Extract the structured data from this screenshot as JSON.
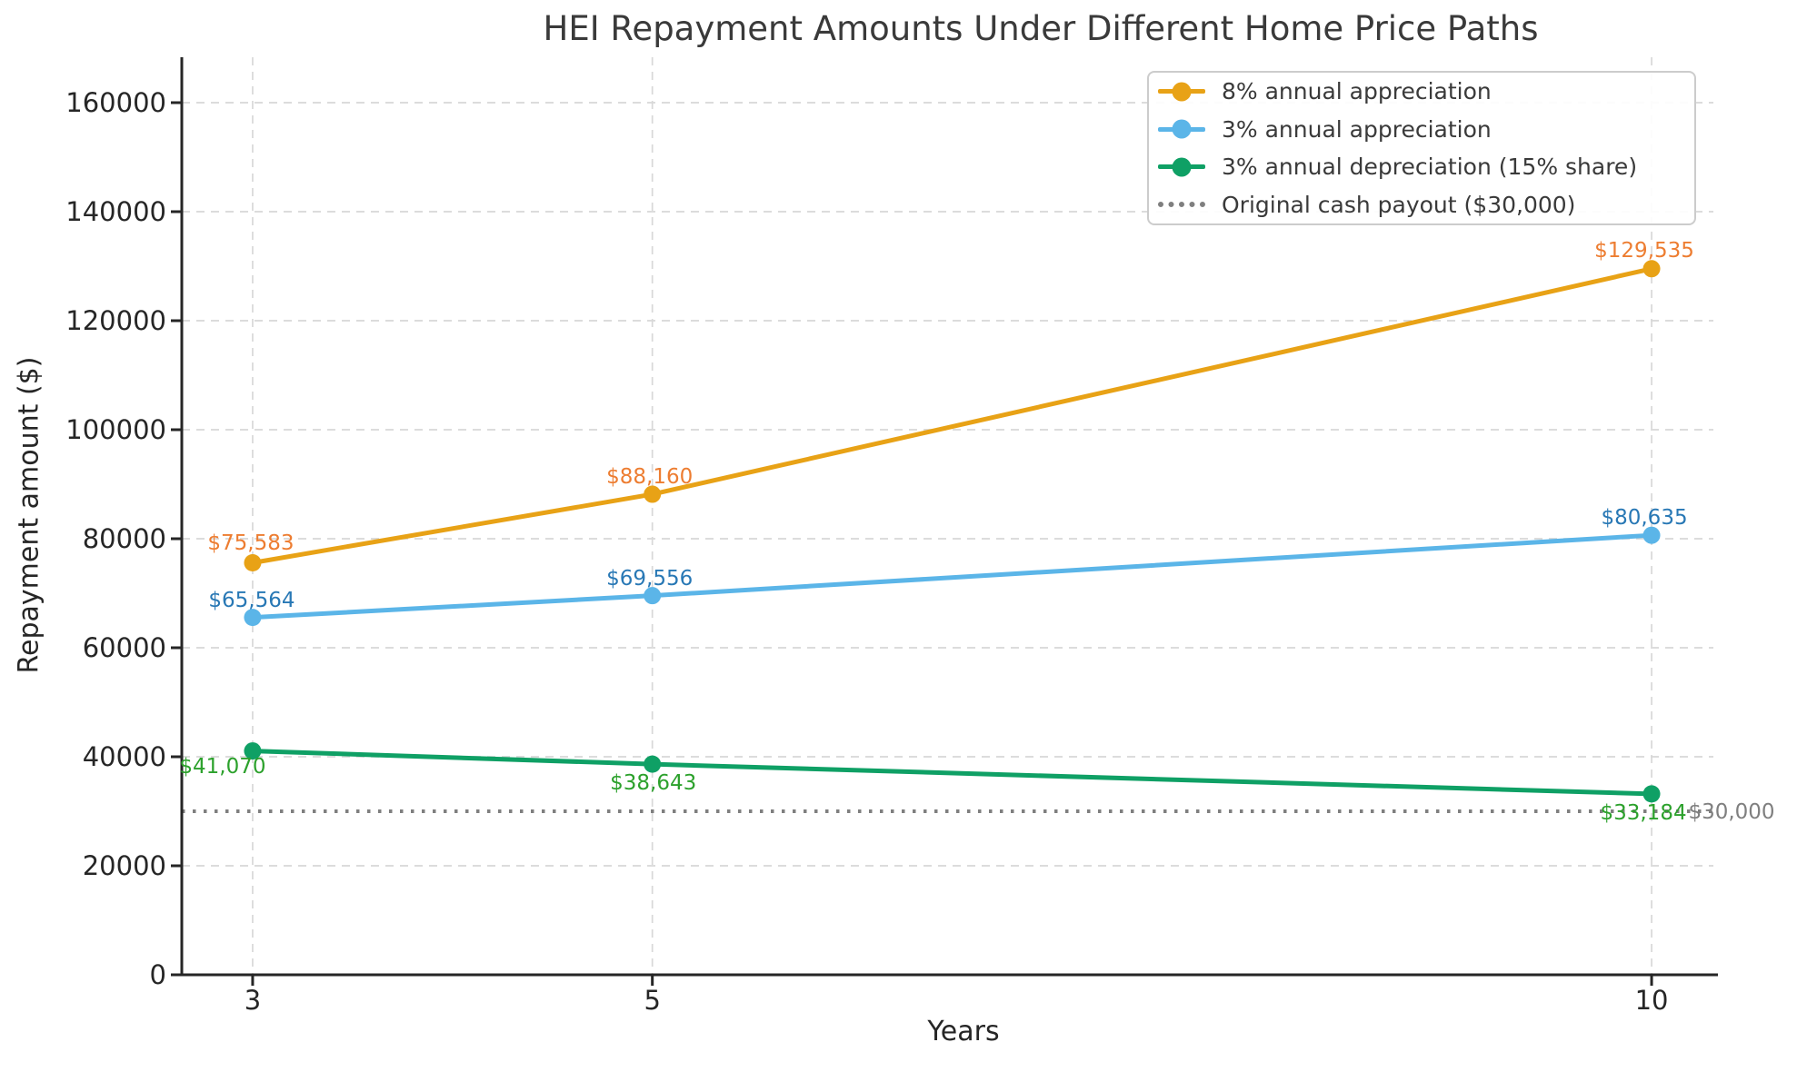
{
  "title": "HEI Repayment Amounts Under Different Home Price Paths",
  "axes": {
    "xlabel": "Years",
    "ylabel": "Repayment amount ($)",
    "x_ticks": [
      {
        "value": 3,
        "label": "3"
      },
      {
        "value": 5,
        "label": "5"
      },
      {
        "value": 10,
        "label": "10"
      }
    ],
    "y_ticks": [
      {
        "value": 0,
        "label": "0"
      },
      {
        "value": 20000,
        "label": "20000"
      },
      {
        "value": 40000,
        "label": "40000"
      },
      {
        "value": 60000,
        "label": "60000"
      },
      {
        "value": 80000,
        "label": "80000"
      },
      {
        "value": 100000,
        "label": "100000"
      },
      {
        "value": 120000,
        "label": "120000"
      },
      {
        "value": 140000,
        "label": "140000"
      },
      {
        "value": 160000,
        "label": "160000"
      }
    ]
  },
  "legend": {
    "position": "upper right",
    "items": [
      {
        "label": "8% annual appreciation",
        "color": "#E8A216",
        "style": "solid"
      },
      {
        "label": "3% annual appreciation",
        "color": "#5BB5E8",
        "style": "solid"
      },
      {
        "label": "3% annual depreciation (15% share)",
        "color": "#0FA065",
        "style": "solid"
      },
      {
        "label": "Original cash payout ($30,000)",
        "color": "#7F7F7F",
        "style": "dotted"
      }
    ]
  },
  "chart_data": {
    "type": "line",
    "title": "HEI Repayment Amounts Under Different Home Price Paths",
    "xlabel": "Years",
    "ylabel": "Repayment amount ($)",
    "x": [
      3,
      5,
      10
    ],
    "x_range": [
      2.6455,
      10.3318
    ],
    "y_range": [
      0,
      168333
    ],
    "grid": true,
    "legend_position": "upper right",
    "series": [
      {
        "name": "8% annual appreciation",
        "color": "#E8A216",
        "label_color": "#ED7D31",
        "values": [
          75583,
          88160,
          129535
        ],
        "point_labels": [
          "$75,583",
          "$88,160",
          "$129,535"
        ],
        "label_offsets": [
          [
            -2,
            -22
          ],
          [
            -3,
            -19
          ],
          [
            -8,
            -20
          ]
        ]
      },
      {
        "name": "3% annual appreciation",
        "color": "#5BB5E8",
        "label_color": "#2878B5",
        "values": [
          65564,
          69556,
          80635
        ],
        "point_labels": [
          "$65,564",
          "$69,556",
          "$80,635"
        ],
        "label_offsets": [
          [
            -1,
            -19
          ],
          [
            -3,
            -19
          ],
          [
            -8,
            -19
          ]
        ]
      },
      {
        "name": "3% annual depreciation (15% share)",
        "color": "#0FA065",
        "label_color": "#2CA12C",
        "values": [
          41070,
          38643,
          33184
        ],
        "point_labels": [
          "$41,070",
          "$38,643",
          "$33,184"
        ],
        "label_offsets": [
          [
            -33,
            17
          ],
          [
            1,
            21
          ],
          [
            -9,
            21
          ]
        ]
      }
    ],
    "reference_line": {
      "value": 30000,
      "label": "$30,000",
      "legend_label": "Original cash payout ($30,000)",
      "color": "#7F7F7F"
    }
  }
}
